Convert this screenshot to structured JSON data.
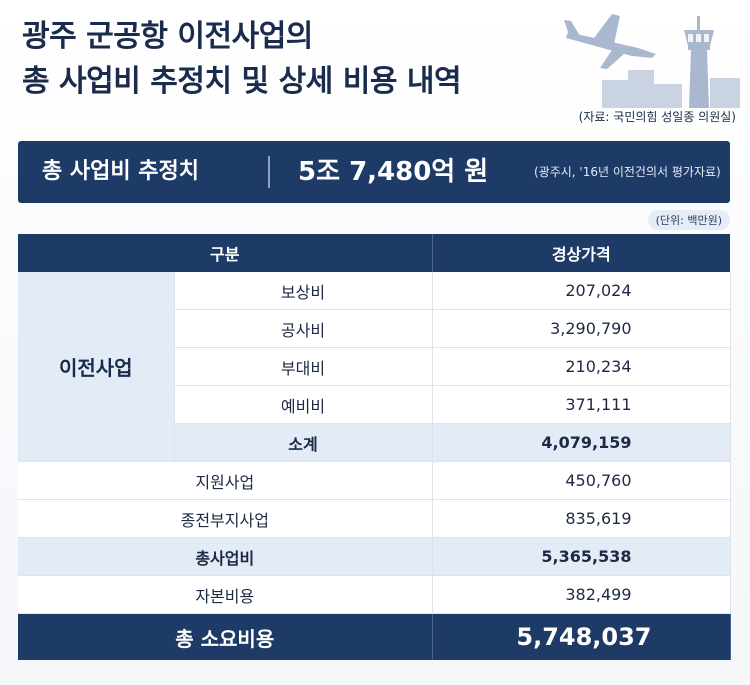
{
  "title": {
    "line1": "광주 군공항 이전사업의",
    "line2": "총 사업비 추정치 및 상세 비용 내역"
  },
  "source": "(자료: 국민의힘 성일종 의원실)",
  "banner": {
    "label": "총 사업비 추정치",
    "amount": "5조 7,480억 원",
    "note": "(광주시, '16년 이전건의서 평가자료)"
  },
  "unit": "(단위: 백만원)",
  "table": {
    "headers": [
      "구분",
      "경상가격"
    ],
    "group_label": "이전사업",
    "group_rows": [
      {
        "label": "보상비",
        "value": "207,024"
      },
      {
        "label": "공사비",
        "value": "3,290,790"
      },
      {
        "label": "부대비",
        "value": "210,234"
      },
      {
        "label": "예비비",
        "value": "371,111"
      }
    ],
    "subtotal": {
      "label": "소계",
      "value": "4,079,159"
    },
    "rows": [
      {
        "label": "지원사업",
        "value": "450,760"
      },
      {
        "label": "종전부지사업",
        "value": "835,619"
      }
    ],
    "business_total": {
      "label": "총사업비",
      "value": "5,365,538"
    },
    "capital": {
      "label": "자본비용",
      "value": "382,499"
    },
    "grand_total": {
      "label": "총 소요비용",
      "value": "5,748,037"
    }
  },
  "icons": [
    "airplane-icon",
    "control-tower-icon",
    "city-skyline-icon"
  ]
}
